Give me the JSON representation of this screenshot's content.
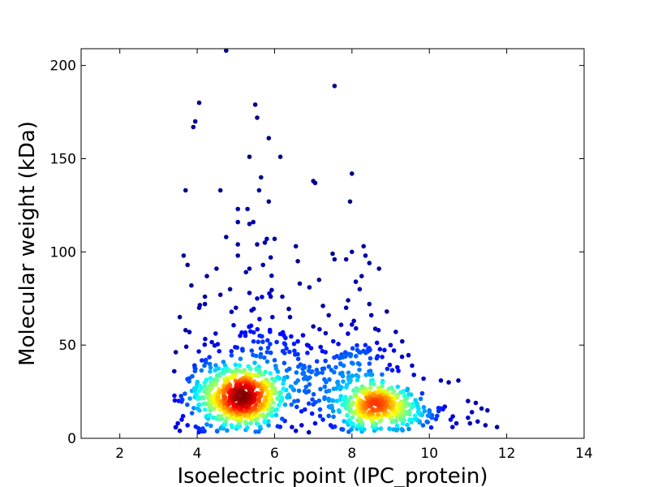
{
  "chart_data": {
    "type": "scatter",
    "title": "",
    "xlabel": "Isoelectric point (IPC_protein)",
    "ylabel": "Molecular weight (kDa)",
    "xlim": [
      1,
      14
    ],
    "ylim": [
      0,
      209
    ],
    "x_ticks": [
      2,
      4,
      6,
      8,
      10,
      12,
      14
    ],
    "y_ticks": [
      0,
      50,
      100,
      150,
      200
    ],
    "grid": false,
    "legend": "none",
    "color_scale": "jet (point density, blue = low, dark red = high)",
    "colors": {
      "low_density": "#00008f",
      "mid_density": "#00ffff",
      "high_density": "#800000"
    },
    "sparse_points": [
      [
        4.75,
        208
      ],
      [
        4.05,
        180
      ],
      [
        3.9,
        167
      ],
      [
        3.95,
        170
      ],
      [
        3.7,
        133
      ],
      [
        3.65,
        98
      ],
      [
        3.75,
        93
      ],
      [
        3.85,
        82
      ],
      [
        4.6,
        133
      ],
      [
        5.05,
        123
      ],
      [
        5.05,
        116
      ],
      [
        5.35,
        151
      ],
      [
        5.5,
        179
      ],
      [
        5.55,
        172
      ],
      [
        5.65,
        140
      ],
      [
        5.6,
        133
      ],
      [
        5.85,
        161
      ],
      [
        5.85,
        127
      ],
      [
        6.15,
        151
      ],
      [
        5.45,
        116
      ],
      [
        5.35,
        115
      ],
      [
        5.3,
        123
      ],
      [
        4.75,
        108
      ],
      [
        5.05,
        104
      ],
      [
        5.05,
        98
      ],
      [
        5.55,
        104
      ],
      [
        5.8,
        107
      ],
      [
        5.75,
        105
      ],
      [
        6.0,
        107
      ],
      [
        5.9,
        97
      ],
      [
        5.7,
        93
      ],
      [
        5.35,
        91
      ],
      [
        6.2,
        76
      ],
      [
        6.55,
        103
      ],
      [
        6.6,
        95
      ],
      [
        6.65,
        83
      ],
      [
        6.9,
        81
      ],
      [
        7.05,
        137
      ],
      [
        7.0,
        138
      ],
      [
        7.15,
        85
      ],
      [
        7.55,
        189
      ],
      [
        7.5,
        99
      ],
      [
        7.55,
        96
      ],
      [
        7.25,
        71
      ],
      [
        7.4,
        66
      ],
      [
        7.85,
        96
      ],
      [
        8.0,
        142
      ],
      [
        7.95,
        127
      ],
      [
        8.0,
        100
      ],
      [
        8.3,
        103
      ],
      [
        8.35,
        98
      ],
      [
        8.45,
        94
      ],
      [
        8.7,
        91
      ],
      [
        8.25,
        87
      ],
      [
        8.1,
        84
      ],
      [
        8.2,
        80
      ],
      [
        7.9,
        74
      ],
      [
        7.85,
        70
      ],
      [
        8.05,
        63
      ],
      [
        8.0,
        61
      ],
      [
        8.45,
        72
      ],
      [
        8.5,
        66
      ],
      [
        8.9,
        68
      ],
      [
        4.25,
        87
      ],
      [
        4.5,
        91
      ],
      [
        4.2,
        76
      ],
      [
        4.05,
        70
      ],
      [
        4.2,
        72
      ],
      [
        3.55,
        65
      ],
      [
        3.7,
        58
      ],
      [
        3.8,
        57
      ],
      [
        4.6,
        77
      ],
      [
        4.85,
        80
      ],
      [
        5.0,
        70
      ],
      [
        5.35,
        78
      ],
      [
        5.55,
        75
      ],
      [
        5.9,
        76
      ],
      [
        6.4,
        65
      ],
      [
        6.6,
        52
      ],
      [
        7.0,
        60
      ],
      [
        9.0,
        50
      ],
      [
        9.3,
        52
      ],
      [
        9.6,
        34
      ],
      [
        9.85,
        32
      ],
      [
        10.3,
        31
      ],
      [
        10.5,
        30
      ],
      [
        10.75,
        31
      ],
      [
        11.0,
        20
      ],
      [
        11.2,
        19
      ],
      [
        11.35,
        16
      ],
      [
        11.1,
        14
      ],
      [
        11.5,
        15
      ],
      [
        11.75,
        6
      ],
      [
        11.45,
        7
      ],
      [
        11.25,
        9
      ],
      [
        11.05,
        8
      ],
      [
        11.0,
        11
      ],
      [
        10.7,
        8
      ],
      [
        10.55,
        10
      ],
      [
        10.6,
        6
      ],
      [
        10.3,
        16
      ],
      [
        10.2,
        12
      ],
      [
        10.4,
        17
      ],
      [
        3.5,
        8
      ],
      [
        3.45,
        6
      ],
      [
        3.55,
        4
      ],
      [
        3.6,
        10
      ],
      [
        3.75,
        7
      ],
      [
        6.55,
        4
      ],
      [
        6.7,
        7
      ],
      [
        6.45,
        6
      ],
      [
        7.05,
        8
      ],
      [
        7.25,
        10
      ],
      [
        7.4,
        12
      ],
      [
        7.45,
        7
      ],
      [
        7.5,
        6
      ]
    ],
    "density_clusters": [
      {
        "center": [
          5.2,
          22
        ],
        "spread": [
          0.55,
          10
        ],
        "count": 520
      },
      {
        "center": [
          8.6,
          18
        ],
        "spread": [
          0.5,
          8
        ],
        "count": 330
      },
      {
        "center": [
          4.3,
          25
        ],
        "spread": [
          0.5,
          16
        ],
        "count": 90
      },
      {
        "center": [
          5.6,
          50
        ],
        "spread": [
          0.6,
          14
        ],
        "count": 80
      },
      {
        "center": [
          7.1,
          30
        ],
        "spread": [
          0.6,
          14
        ],
        "count": 110
      },
      {
        "center": [
          9.6,
          12
        ],
        "spread": [
          0.6,
          6
        ],
        "count": 60
      },
      {
        "center": [
          8.3,
          42
        ],
        "spread": [
          0.6,
          10
        ],
        "count": 60
      }
    ]
  }
}
